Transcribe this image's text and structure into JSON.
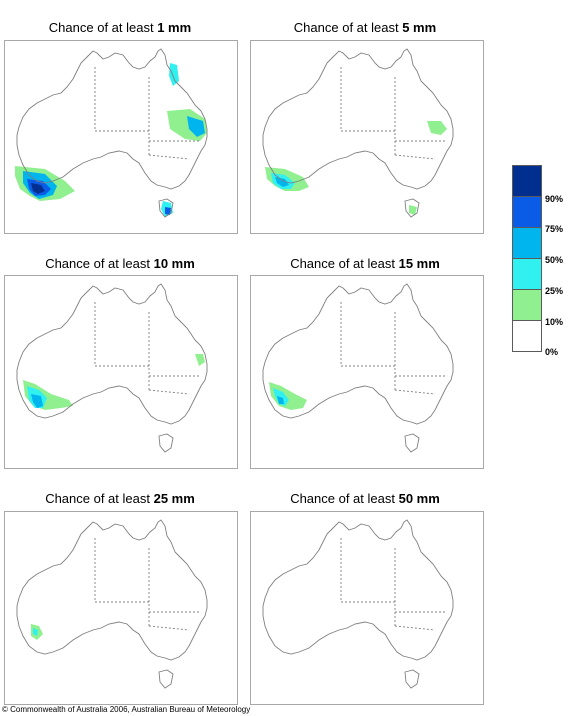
{
  "title_prefix": "Chance of at least",
  "panels": [
    {
      "amount": "1 mm"
    },
    {
      "amount": "5 mm"
    },
    {
      "amount": "10 mm"
    },
    {
      "amount": "15 mm"
    },
    {
      "amount": "25 mm"
    },
    {
      "amount": "50 mm"
    }
  ],
  "legend": {
    "categories": [
      {
        "label": "90%",
        "color": "#002f8f"
      },
      {
        "label": "75%",
        "color": "#0a5ce6"
      },
      {
        "label": "50%",
        "color": "#00b4ee"
      },
      {
        "label": "25%",
        "color": "#30f0f0"
      },
      {
        "label": "10%",
        "color": "#90f090"
      },
      {
        "label": "0%",
        "color": "#ffffff"
      }
    ]
  },
  "copyright": "© Commonwealth of Australia 2006, Australian Bureau of Meteorology"
}
